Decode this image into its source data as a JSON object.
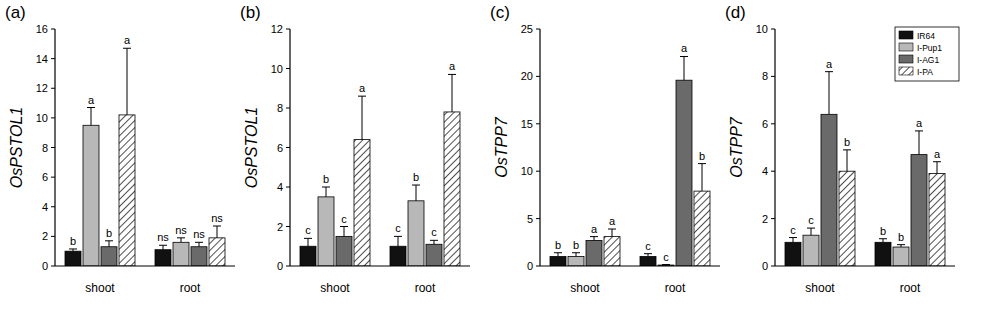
{
  "chart_data": [
    {
      "type": "bar",
      "title": "(a)",
      "y_label": "OsPSTOL1",
      "categories": [
        "shoot",
        "root"
      ],
      "ylim": [
        0,
        16
      ],
      "yticks": [
        0,
        2,
        4,
        6,
        8,
        10,
        12,
        14,
        16
      ],
      "series": [
        {
          "name": "IR64",
          "color": "#111111",
          "values": [
            1.0,
            1.1
          ],
          "errors": [
            0.15,
            0.3
          ],
          "letters": [
            "b",
            "ns"
          ]
        },
        {
          "name": "I-Pup1",
          "color": "#b8b8b8",
          "values": [
            9.5,
            1.6
          ],
          "errors": [
            1.2,
            0.3
          ],
          "letters": [
            "a",
            "ns"
          ]
        },
        {
          "name": "I-AG1",
          "color": "#6a6a6a",
          "values": [
            1.3,
            1.3
          ],
          "errors": [
            0.4,
            0.3
          ],
          "letters": [
            "b",
            "ns"
          ]
        },
        {
          "name": "I-PA",
          "color": "#ffffff",
          "line_style": "hatched",
          "values": [
            10.2,
            1.9
          ],
          "errors": [
            4.5,
            0.8
          ],
          "letters": [
            "a",
            "ns"
          ]
        }
      ]
    },
    {
      "type": "bar",
      "title": "(b)",
      "y_label": "OsPSTOL1",
      "categories": [
        "shoot",
        "root"
      ],
      "ylim": [
        0,
        12
      ],
      "yticks": [
        0,
        2,
        4,
        6,
        8,
        10,
        12
      ],
      "series": [
        {
          "name": "IR64",
          "color": "#111111",
          "values": [
            1.0,
            1.0
          ],
          "errors": [
            0.4,
            0.5
          ],
          "letters": [
            "c",
            "c"
          ]
        },
        {
          "name": "I-Pup1",
          "color": "#b8b8b8",
          "values": [
            3.5,
            3.3
          ],
          "errors": [
            0.5,
            0.8
          ],
          "letters": [
            "b",
            "b"
          ]
        },
        {
          "name": "I-AG1",
          "color": "#6a6a6a",
          "values": [
            1.5,
            1.1
          ],
          "errors": [
            0.5,
            0.2
          ],
          "letters": [
            "c",
            "c"
          ]
        },
        {
          "name": "I-PA",
          "color": "#ffffff",
          "line_style": "hatched",
          "values": [
            6.4,
            7.8
          ],
          "errors": [
            2.2,
            1.9
          ],
          "letters": [
            "a",
            "a"
          ]
        }
      ]
    },
    {
      "type": "bar",
      "title": "(c)",
      "y_label": "OsTPP7",
      "categories": [
        "shoot",
        "root"
      ],
      "ylim": [
        0,
        25
      ],
      "yticks": [
        0,
        5,
        10,
        15,
        20,
        25
      ],
      "series": [
        {
          "name": "IR64",
          "color": "#111111",
          "values": [
            1.0,
            1.0
          ],
          "errors": [
            0.4,
            0.3
          ],
          "letters": [
            "b",
            "c"
          ]
        },
        {
          "name": "I-Pup1",
          "color": "#b8b8b8",
          "values": [
            1.0,
            0.1
          ],
          "errors": [
            0.4,
            0.05
          ],
          "letters": [
            "b",
            "c"
          ]
        },
        {
          "name": "I-AG1",
          "color": "#6a6a6a",
          "values": [
            2.7,
            19.6
          ],
          "errors": [
            0.4,
            2.5
          ],
          "letters": [
            "a",
            "a"
          ]
        },
        {
          "name": "I-PA",
          "color": "#ffffff",
          "line_style": "hatched",
          "values": [
            3.1,
            7.9
          ],
          "errors": [
            0.8,
            2.9
          ],
          "letters": [
            "a",
            "b"
          ]
        }
      ]
    },
    {
      "type": "bar",
      "title": "(d)",
      "y_label": "OsTPP7",
      "categories": [
        "shoot",
        "root"
      ],
      "ylim": [
        0,
        10
      ],
      "yticks": [
        0,
        2,
        4,
        6,
        8,
        10
      ],
      "legend": "upper right",
      "series": [
        {
          "name": "IR64",
          "color": "#111111",
          "values": [
            1.0,
            1.0
          ],
          "errors": [
            0.2,
            0.15
          ],
          "letters": [
            "c",
            "b"
          ]
        },
        {
          "name": "I-Pup1",
          "color": "#b8b8b8",
          "values": [
            1.3,
            0.8
          ],
          "errors": [
            0.3,
            0.1
          ],
          "letters": [
            "c",
            "b"
          ]
        },
        {
          "name": "I-AG1",
          "color": "#6a6a6a",
          "values": [
            6.4,
            4.7
          ],
          "errors": [
            1.8,
            1.0
          ],
          "letters": [
            "a",
            "a"
          ]
        },
        {
          "name": "I-PA",
          "color": "#ffffff",
          "line_style": "hatched",
          "values": [
            4.0,
            3.9
          ],
          "errors": [
            0.9,
            0.5
          ],
          "letters": [
            "b",
            "a"
          ]
        }
      ]
    }
  ]
}
